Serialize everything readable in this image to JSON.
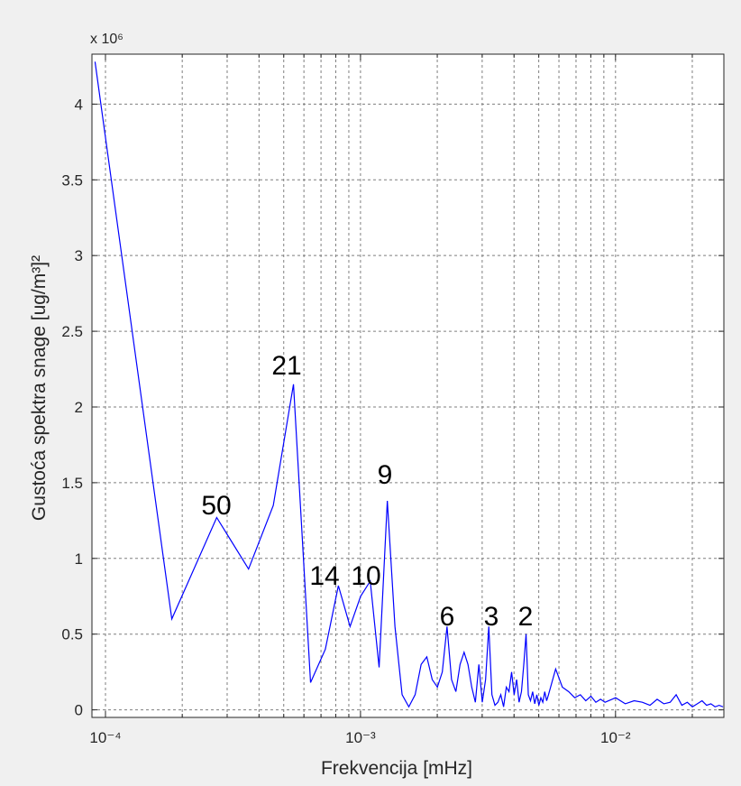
{
  "chart_data": {
    "type": "line",
    "xlabel": "Frekvencija [mHz]",
    "ylabel": "Gustoća spektra snage [ug/m³]²",
    "y_multiplier": "x 10⁶",
    "xscale": "log",
    "grid": true,
    "color": "#0000ff",
    "xlim": [
      8.85e-05,
      0.0266
    ],
    "ylim": [
      -0.05,
      4.33
    ],
    "xticks": [
      {
        "value": 0.0001,
        "label": "10⁻⁴"
      },
      {
        "value": 0.001,
        "label": "10⁻³"
      },
      {
        "value": 0.01,
        "label": "10⁻²"
      }
    ],
    "xminorticks": [
      0.0002,
      0.0003,
      0.0004,
      0.0005,
      0.0006,
      0.0007,
      0.0008,
      0.0009,
      0.002,
      0.003,
      0.004,
      0.005,
      0.006,
      0.007,
      0.008,
      0.009,
      0.02
    ],
    "yticks": [
      0,
      0.5,
      1,
      1.5,
      2,
      2.5,
      3,
      3.5,
      4
    ],
    "annotations": [
      "50",
      "21",
      "14",
      "10",
      "9",
      "6",
      "3",
      "2"
    ],
    "x": [
      9.1e-05,
      0.000182,
      0.000273,
      0.000364,
      0.000455,
      0.000546,
      0.000637,
      0.000728,
      0.000819,
      0.00091,
      0.001001,
      0.001092,
      0.001183,
      0.001274,
      0.001365,
      0.001456,
      0.001547,
      0.001638,
      0.001729,
      0.00182,
      0.001911,
      0.002002,
      0.002093,
      0.002184,
      0.002275,
      0.002366,
      0.002457,
      0.002548,
      0.002639,
      0.00273,
      0.002821,
      0.002912,
      0.003003,
      0.003094,
      0.003185,
      0.003276,
      0.003367,
      0.003458,
      0.003549,
      0.00364,
      0.003731,
      0.003822,
      0.003913,
      0.004004,
      0.004095,
      0.004186,
      0.004277,
      0.004368,
      0.004459,
      0.00455,
      0.004641,
      0.004732,
      0.004823,
      0.004914,
      0.005005,
      0.005096,
      0.005187,
      0.005278,
      0.005369,
      0.00546,
      0.005824,
      0.006188,
      0.006552,
      0.006916,
      0.00728,
      0.007644,
      0.008008,
      0.008372,
      0.008736,
      0.0091,
      0.01001,
      0.01092,
      0.01183,
      0.01274,
      0.01365,
      0.01456,
      0.01547,
      0.01638,
      0.01729,
      0.0182,
      0.01911,
      0.02002,
      0.02093,
      0.02184,
      0.02275,
      0.02366,
      0.02457,
      0.02548,
      0.02639
    ],
    "values": [
      4.28,
      0.6,
      1.27,
      0.93,
      1.35,
      2.15,
      0.18,
      0.4,
      0.82,
      0.55,
      0.75,
      0.85,
      0.28,
      1.38,
      0.55,
      0.1,
      0.02,
      0.1,
      0.3,
      0.35,
      0.2,
      0.15,
      0.25,
      0.55,
      0.2,
      0.12,
      0.3,
      0.38,
      0.3,
      0.15,
      0.05,
      0.3,
      0.05,
      0.2,
      0.55,
      0.1,
      0.03,
      0.05,
      0.1,
      0.02,
      0.15,
      0.12,
      0.25,
      0.1,
      0.2,
      0.05,
      0.12,
      0.3,
      0.5,
      0.1,
      0.06,
      0.12,
      0.04,
      0.1,
      0.03,
      0.08,
      0.05,
      0.12,
      0.06,
      0.1,
      0.27,
      0.15,
      0.12,
      0.08,
      0.1,
      0.06,
      0.09,
      0.05,
      0.07,
      0.05,
      0.08,
      0.04,
      0.06,
      0.05,
      0.03,
      0.07,
      0.04,
      0.05,
      0.1,
      0.03,
      0.05,
      0.02,
      0.04,
      0.06,
      0.03,
      0.04,
      0.02,
      0.03,
      0.02
    ]
  }
}
